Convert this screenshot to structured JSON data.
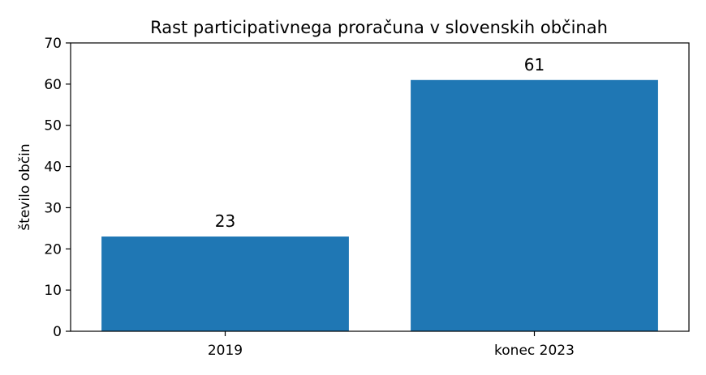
{
  "chart_data": {
    "type": "bar",
    "title": "Rast participativnega proračuna v slovenskih občinah",
    "xlabel": "",
    "ylabel": "število občin",
    "categories": [
      "2019",
      "konec 2023"
    ],
    "values": [
      23,
      61
    ],
    "data_labels": [
      "23",
      "61"
    ],
    "ylim": [
      0,
      70
    ],
    "yticks": [
      "0",
      "10",
      "20",
      "30",
      "40",
      "50",
      "60",
      "70"
    ],
    "bar_color": "#1f77b4",
    "grid": false,
    "legend": "none"
  }
}
